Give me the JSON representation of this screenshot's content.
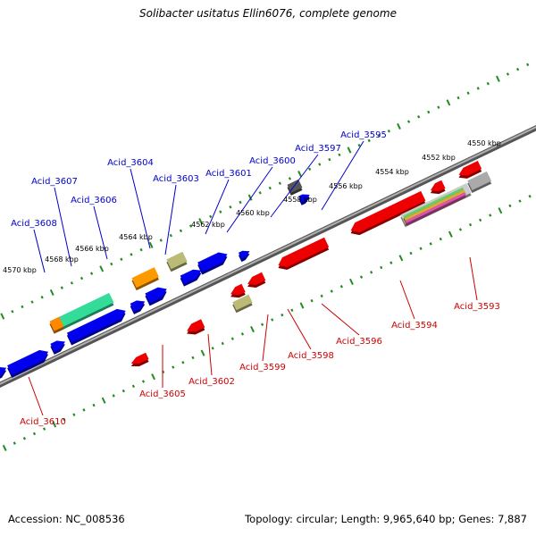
{
  "title": "Solibacter usitatus Ellin6076, complete genome",
  "accession": "Accession: NC_008536",
  "summary": "Topology: circular; Length: 9,965,640 bp; Genes: 7,887",
  "colors": {
    "forward": "#0000ee",
    "reverse": "#ee0000",
    "backbone": "#808080",
    "tick": "#228b22",
    "forward_label": "#0000cc",
    "reverse_label": "#cc0000"
  },
  "ruler_upper_labels": [
    "4570 kbp",
    "4568 kbp",
    "4566 kbp",
    "4564 kbp",
    "4562 kbp",
    "4560 kbp",
    "4558 kbp",
    "4556 kbp",
    "4554 kbp",
    "4552 kbp",
    "4550 kbp"
  ],
  "forward_labels": [
    "Acid_3608",
    "Acid_3607",
    "Acid_3606",
    "Acid_3604",
    "Acid_3603",
    "Acid_3601",
    "Acid_3600",
    "Acid_3597",
    "Acid_3595"
  ],
  "reverse_labels": [
    "Acid_3610",
    "Acid_3605",
    "Acid_3602",
    "Acid_3599",
    "Acid_3598",
    "Acid_3596",
    "Acid_3594",
    "Acid_3593"
  ]
}
